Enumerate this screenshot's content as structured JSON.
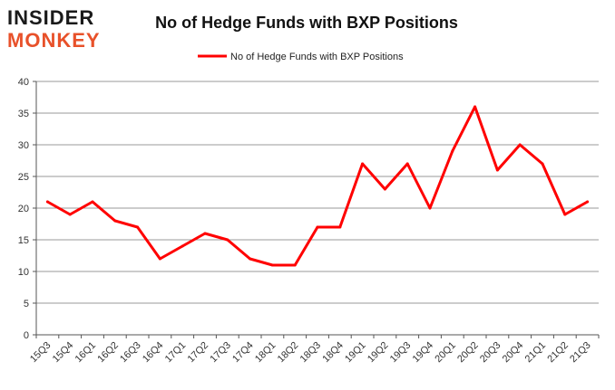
{
  "logo": {
    "line1": "INSIDER",
    "line2": "MONKEY",
    "colors": {
      "insider": "#1a1a1a",
      "monkey": "#e8512a"
    }
  },
  "chart_data": {
    "type": "line",
    "title": "No of Hedge Funds with BXP Positions",
    "xlabel": "",
    "ylabel": "",
    "categories": [
      "15Q3",
      "15Q4",
      "16Q1",
      "16Q2",
      "16Q3",
      "16Q4",
      "17Q1",
      "17Q2",
      "17Q3",
      "17Q4",
      "18Q1",
      "18Q2",
      "18Q3",
      "18Q4",
      "19Q1",
      "19Q2",
      "19Q3",
      "19Q4",
      "20Q1",
      "20Q2",
      "20Q3",
      "20Q4",
      "21Q1",
      "21Q2",
      "21Q3"
    ],
    "series": [
      {
        "name": "No of Hedge Funds with BXP Positions",
        "color": "#ff0000",
        "values": [
          21,
          19,
          21,
          18,
          17,
          12,
          14,
          16,
          15,
          12,
          11,
          11,
          17,
          17,
          27,
          23,
          27,
          20,
          29,
          36,
          26,
          30,
          27,
          19,
          21
        ]
      }
    ],
    "ylim": [
      0,
      40
    ],
    "yticks": [
      0,
      5,
      10,
      15,
      20,
      25,
      30,
      35,
      40
    ],
    "grid": true,
    "legend_position": "top-center"
  }
}
